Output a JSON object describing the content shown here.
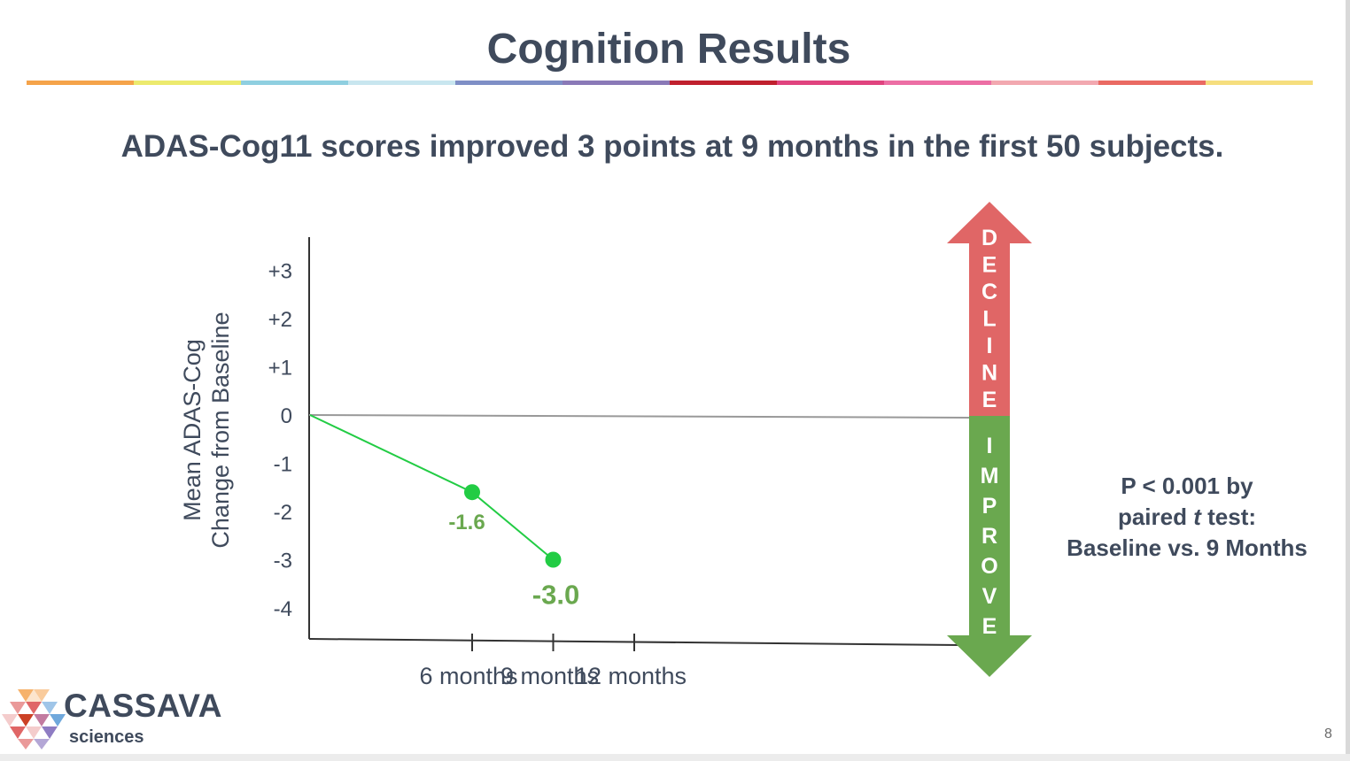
{
  "title": "Cognition Results",
  "subtitle": "ADAS-Cog11 scores improved 3 points at 9 months in the first 50 subjects.",
  "title_bar_colors": [
    "#f5a34a",
    "#ecea6e",
    "#8fcfe0",
    "#c8e6ef",
    "#7f8fc6",
    "#8a79b7",
    "#c0202e",
    "#e0447f",
    "#ec6ea4",
    "#f2a8b0",
    "#ea6a63",
    "#f6de7e"
  ],
  "chart_data": {
    "type": "line",
    "ylabel": [
      "Mean ADAS-Cog",
      "Change from Baseline"
    ],
    "y_ticks": [
      "+3",
      "+2",
      "+1",
      "0",
      "-1",
      "-2",
      "-3",
      "-4"
    ],
    "x_ticks": [
      "6 months",
      "9 months",
      "12 months"
    ],
    "series": [
      {
        "color": "#22cc44",
        "points": [
          {
            "x": 0,
            "y": 0.0,
            "label": ""
          },
          {
            "x": 6,
            "y": -1.6,
            "label": "-1.6"
          },
          {
            "x": 9,
            "y": -3.0,
            "label": "-3.0"
          }
        ]
      }
    ],
    "arrow": {
      "up_label": "DECLINE",
      "down_label": "IMPROVE",
      "up_color": "#e06666",
      "down_color": "#6aa84f"
    }
  },
  "pvalue_lines": [
    "P < 0.001 by",
    "paired t test:",
    "Baseline vs. 9 Months"
  ],
  "logo": {
    "word": "CASSAVA",
    "sub": "sciences"
  },
  "page_number": "8"
}
